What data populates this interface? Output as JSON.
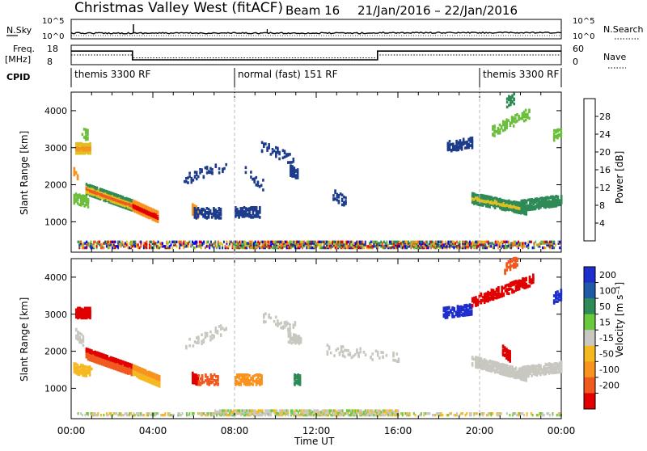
{
  "header": {
    "title": "Christmas Valley West (fitACF)",
    "beam": "Beam 16",
    "dates": "21/Jan/2016 – 22/Jan/2016"
  },
  "labels": {
    "nsky": "N.Sky",
    "nsearch": "N.Search",
    "freq_line1": "Freq.",
    "freq_line2": "[MHz]",
    "nave": "Nave",
    "cpid": "CPID"
  },
  "cpid_segments": [
    {
      "label": "themis 3300 RF",
      "start_h": 0,
      "end_h": 8.0
    },
    {
      "label": "normal (fast) 151 RF",
      "start_h": 8.0,
      "end_h": 20.0
    },
    {
      "label": "themis 3300 RF",
      "start_h": 20.0,
      "end_h": 24.0
    }
  ],
  "colorbars": {
    "power": {
      "title": "Power [dB]",
      "ticks": [
        "4",
        "8",
        "12",
        "16",
        "20",
        "24",
        "28"
      ],
      "colors": [
        "#0000ff",
        "#1e3c8c",
        "#2e8b57",
        "#6cbf3c",
        "#e0c020",
        "#f7931e",
        "#f05a1e",
        "#e00000"
      ]
    },
    "velocity": {
      "title": "Velocity [m s⁻¹]",
      "ticks": [
        "200",
        "100",
        "50",
        "15",
        "-15",
        "-50",
        "-100",
        "-200"
      ],
      "colors": [
        "#1e2ecc",
        "#1f5aa8",
        "#2e8b57",
        "#6cc83c",
        "#c8c8c0",
        "#f5b820",
        "#f7931e",
        "#f05a1e",
        "#e00000"
      ]
    }
  },
  "chart_data": [
    {
      "type": "line",
      "title": "N.Sky / N.Search",
      "ylabels_left": [
        "10^5",
        "10^0"
      ],
      "ylabels_right": [
        "10^5",
        "10^0"
      ],
      "series": [
        {
          "name": "N.Sky",
          "description": "noise level, nearly flat with spikes near 03:00 and 09:30"
        }
      ]
    },
    {
      "type": "line",
      "title": "Freq. / Nave",
      "ylabels_left": [
        "18",
        "8"
      ],
      "ylabels_right": [
        "60",
        "0"
      ],
      "series": [
        {
          "name": "Freq.",
          "x": [
            0,
            3.0,
            3.0,
            15.0,
            15.0,
            24
          ],
          "y": [
            15,
            15,
            10.5,
            10.5,
            15,
            15
          ]
        },
        {
          "name": "Nave",
          "x": [
            0,
            3.0,
            3.0,
            15.0,
            15.0,
            24
          ],
          "y": [
            13,
            13,
            11.5,
            11.5,
            13,
            13
          ]
        }
      ]
    },
    {
      "type": "heatmap",
      "ylabel": "Slant Range [km]",
      "yticks": [
        "1000",
        "2000",
        "3000",
        "4000"
      ],
      "ylim": [
        180,
        4500
      ],
      "colorbar": "power"
    },
    {
      "type": "heatmap",
      "ylabel": "Slant Range [km]",
      "yticks": [
        "1000",
        "2000",
        "3000",
        "4000"
      ],
      "ylim": [
        180,
        4500
      ],
      "colorbar": "velocity"
    }
  ],
  "xaxis": {
    "ticks": [
      "00:00",
      "04:00",
      "08:00",
      "12:00",
      "16:00",
      "20:00",
      "00:00"
    ],
    "label": "Time UT",
    "range_h": [
      0,
      24
    ]
  }
}
